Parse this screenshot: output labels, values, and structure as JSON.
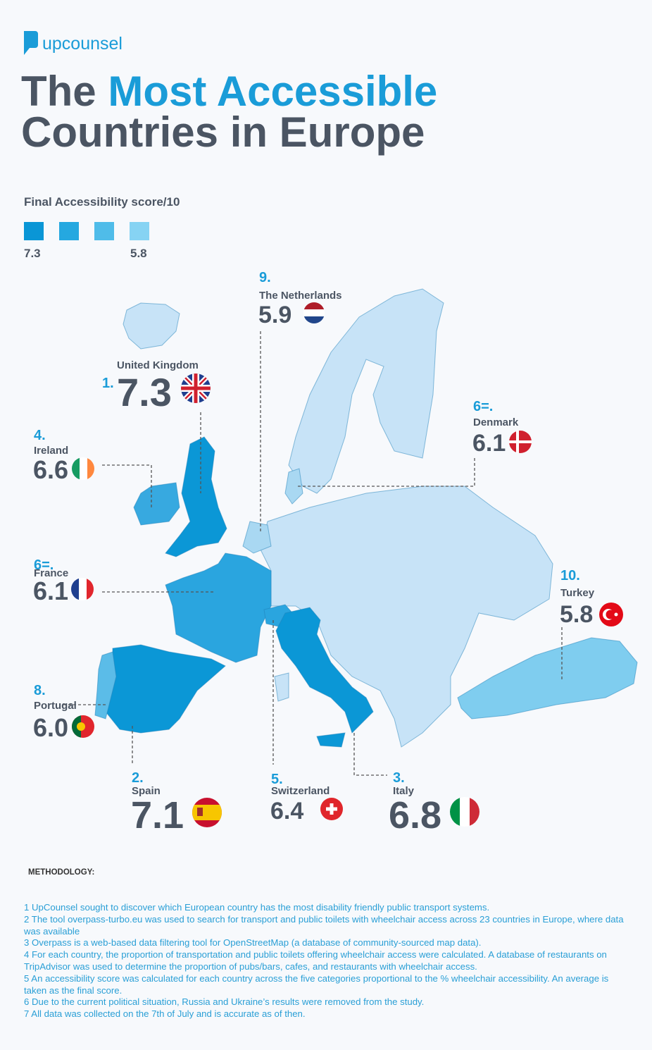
{
  "brand": "upcounsel",
  "title": {
    "line1_start": "The",
    "line1_highlight": "Most Accessible",
    "line2": "Countries in Europe"
  },
  "legend": {
    "title": "Final Accessibility score/10",
    "high_label": "7.3",
    "low_label": "5.8",
    "colors": [
      "#0a96d6",
      "#25a8e0",
      "#4fbce9",
      "#86d3f3"
    ]
  },
  "countries": [
    {
      "rank": "1.",
      "name": "United Kingdom",
      "score": "7.3"
    },
    {
      "rank": "2.",
      "name": "Spain",
      "score": "7.1"
    },
    {
      "rank": "3.",
      "name": "Italy",
      "score": "6.8"
    },
    {
      "rank": "4.",
      "name": "Ireland",
      "score": "6.6"
    },
    {
      "rank": "5.",
      "name": "Switzerland",
      "score": "6.4"
    },
    {
      "rank": "6=.",
      "name": "Denmark",
      "score": "6.1"
    },
    {
      "rank": "6=.",
      "name": "France",
      "score": "6.1"
    },
    {
      "rank": "8.",
      "name": "Portugal",
      "score": "6.0"
    },
    {
      "rank": "9.",
      "name": "The Netherlands",
      "score": "5.9"
    },
    {
      "rank": "10.",
      "name": "Turkey",
      "score": "5.8"
    }
  ],
  "methodology": {
    "heading": "METHODOLOGY:",
    "notes": [
      "1 UpCounsel sought to discover which European country has the most disability friendly public transport systems.",
      "2 The tool overpass-turbo.eu was used to search for transport and public toilets with wheelchair access across 23 countries in Europe, where data was available",
      "3 Overpass is a web-based data filtering tool for OpenStreetMap (a database of community-sourced map data).",
      "4 For each country, the proportion of transportation and public toilets offering wheelchair access were calculated. A database of restaurants on TripAdvisor was used to determine the proportion of pubs/bars, cafes, and restaurants with wheelchair access.",
      "5 An accessibility score was calculated for each country across the five categories proportional to the % wheelchair accessibility. An average is taken as the final score.",
      "6 Due to the current political situation, Russia and Ukraine’s results were removed from the study.",
      "7 All data was collected on the 7th of July and is accurate as of then."
    ]
  }
}
